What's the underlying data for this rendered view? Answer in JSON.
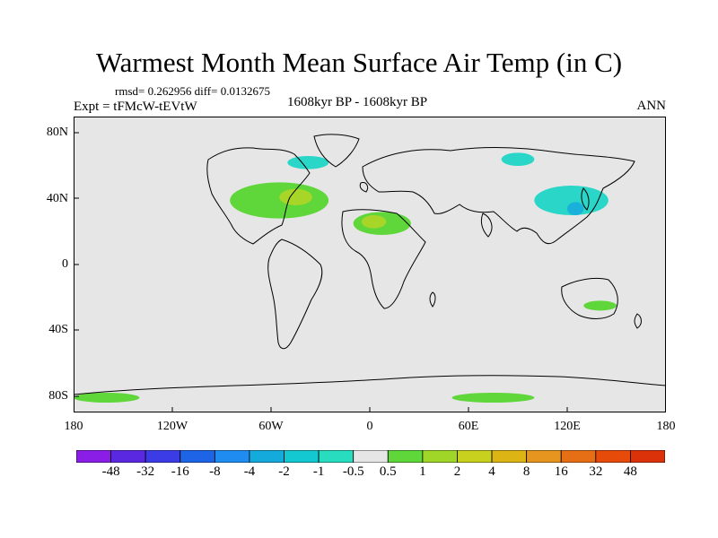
{
  "title": "Warmest Month Mean Surface Air Temp (in C)",
  "stats": "rmsd= 0.262956 diff= 0.0132675",
  "experiment": "Expt = tFMcW-tEVtW",
  "period": "1608kyr BP - 1608kyr BP",
  "season": "ANN",
  "map": {
    "projection": "cylindrical-equidistant",
    "lon_range": [
      -180,
      180
    ],
    "lat_range": [
      -90,
      90
    ],
    "background_color": "#e6e6e6",
    "lat_tick_labels": [
      "80N",
      "40N",
      "0",
      "40S",
      "80S"
    ],
    "lon_tick_labels": [
      "180",
      "120W",
      "60W",
      "0",
      "60E",
      "120E",
      "180"
    ]
  },
  "anomaly_regions": [
    {
      "name": "north-atlantic",
      "level": "1",
      "color": "#5fd63a",
      "lon": [
        -85,
        -25
      ],
      "lat": [
        28,
        50
      ]
    },
    {
      "name": "north-atlantic-core",
      "level": "2",
      "color": "#a8d628",
      "lon": [
        -55,
        -35
      ],
      "lat": [
        36,
        46
      ]
    },
    {
      "name": "north-africa",
      "level": "1",
      "color": "#5fd63a",
      "lon": [
        -10,
        25
      ],
      "lat": [
        18,
        32
      ]
    },
    {
      "name": "north-africa-core",
      "level": "2",
      "color": "#a8d628",
      "lon": [
        -5,
        10
      ],
      "lat": [
        22,
        30
      ]
    },
    {
      "name": "pacific-nw",
      "level": "1",
      "color": "#5fd63a",
      "lon": [
        -180,
        -140
      ],
      "lat": [
        -84,
        -78
      ]
    },
    {
      "name": "southern-ocean",
      "level": "1",
      "color": "#5fd63a",
      "lon": [
        50,
        100
      ],
      "lat": [
        -84,
        -78
      ]
    },
    {
      "name": "australia",
      "level": "1",
      "color": "#5fd63a",
      "lon": [
        130,
        150
      ],
      "lat": [
        -28,
        -22
      ]
    },
    {
      "name": "east-asia",
      "level": "-1",
      "color": "#29d6c8",
      "lon": [
        100,
        145
      ],
      "lat": [
        30,
        48
      ]
    },
    {
      "name": "east-asia-core",
      "level": "-2",
      "color": "#19b0d9",
      "lon": [
        120,
        130
      ],
      "lat": [
        30,
        38
      ]
    },
    {
      "name": "greenland",
      "level": "-1",
      "color": "#29d6c8",
      "lon": [
        -50,
        -25
      ],
      "lat": [
        58,
        66
      ]
    },
    {
      "name": "siberia",
      "level": "-1",
      "color": "#29d6c8",
      "lon": [
        80,
        100
      ],
      "lat": [
        60,
        68
      ]
    }
  ],
  "colorbar": {
    "labels": [
      "-48",
      "-32",
      "-16",
      "-8",
      "-4",
      "-2",
      "-1",
      "-0.5",
      "0.5",
      "1",
      "2",
      "4",
      "8",
      "16",
      "32",
      "48"
    ],
    "colors": [
      "#8a1ee6",
      "#5a28e0",
      "#3c3ce6",
      "#1e64e6",
      "#1e8cf0",
      "#14aadc",
      "#14c8d2",
      "#28dcc0",
      "#e6e6e6",
      "#5fd63a",
      "#a0d628",
      "#c8d21e",
      "#dcb414",
      "#e6961e",
      "#e66e14",
      "#e64b0a",
      "#dc320a"
    ]
  }
}
